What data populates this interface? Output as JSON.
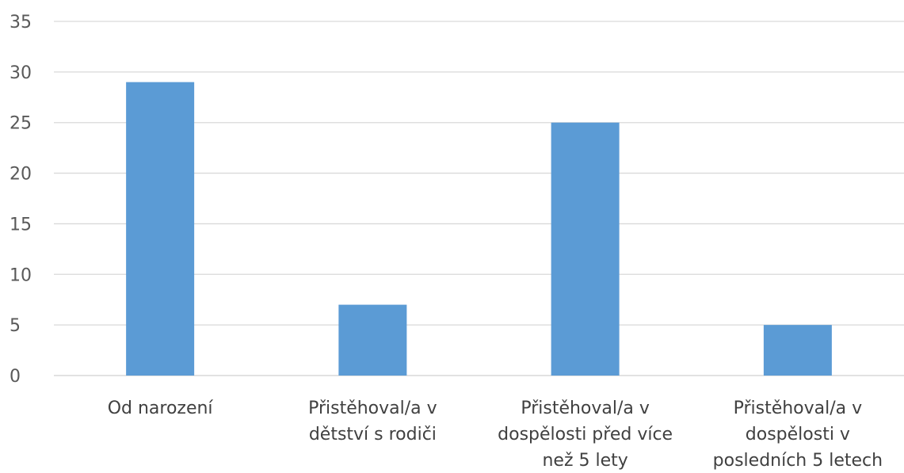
{
  "chart_data": {
    "type": "bar",
    "title": "",
    "xlabel": "",
    "ylabel": "",
    "ylim": [
      0,
      35
    ],
    "yticks": [
      0,
      5,
      10,
      15,
      20,
      25,
      30,
      35
    ],
    "grid": true,
    "legend": "none",
    "categories": [
      "Od narození",
      "Přistěhoval/a v dětství s rodiči",
      "Přistěhoval/a v dospělosti před více než 5 lety",
      "Přistěhoval/a v dospělosti v posledních 5 letech"
    ],
    "category_lines": [
      [
        "Od narození"
      ],
      [
        "Přistěhoval/a v",
        "dětství s rodiči"
      ],
      [
        "Přistěhoval/a v",
        "dospělosti před více",
        "než 5 lety"
      ],
      [
        "Přistěhoval/a v",
        "dospělosti v",
        "posledních 5 letech"
      ]
    ],
    "series": [
      {
        "values": [
          29,
          7,
          25,
          5
        ],
        "color": "#5b9bd5"
      }
    ]
  }
}
